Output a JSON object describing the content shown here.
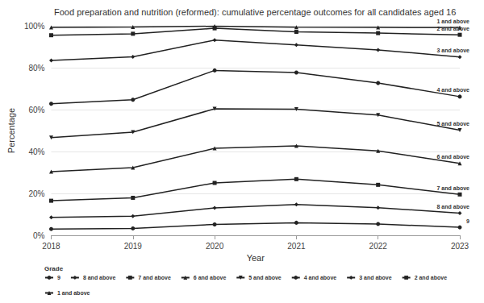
{
  "chart_data": {
    "type": "line",
    "title": "Food preparation and nutrition (reformed): cumulative percentage outcomes for all candidates aged 16",
    "xlabel": "Year",
    "ylabel": "Percentage",
    "legend_title": "Grade",
    "legend": "bottom",
    "grid": true,
    "x": [
      2018,
      2019,
      2020,
      2021,
      2022,
      2023
    ],
    "xlim": [
      2018,
      2023
    ],
    "xticks": [
      2018,
      2019,
      2020,
      2021,
      2022,
      2023
    ],
    "ylim": [
      0,
      100
    ],
    "yticks": [
      {
        "value": 0,
        "label": "0%"
      },
      {
        "value": 20,
        "label": "20%"
      },
      {
        "value": 40,
        "label": "40%"
      },
      {
        "value": 60,
        "label": "60%"
      },
      {
        "value": 80,
        "label": "80%"
      },
      {
        "value": 100,
        "label": "100%"
      }
    ],
    "series": [
      {
        "name": "9",
        "color": "#222222",
        "marker": "circle",
        "values": [
          3.0,
          3.3,
          5.2,
          6.0,
          5.4,
          3.8
        ]
      },
      {
        "name": "8 and above",
        "color": "#222222",
        "marker": "diamond",
        "values": [
          8.6,
          9.1,
          13.1,
          14.7,
          13.2,
          10.6
        ]
      },
      {
        "name": "7 and above",
        "color": "#222222",
        "marker": "square",
        "values": [
          16.5,
          17.9,
          25.0,
          26.8,
          24.1,
          19.5
        ]
      },
      {
        "name": "6 and above",
        "color": "#222222",
        "marker": "triangle",
        "values": [
          30.4,
          32.3,
          41.5,
          42.7,
          40.3,
          34.3
        ]
      },
      {
        "name": "5 and above",
        "color": "#222222",
        "marker": "triangle-down",
        "values": [
          46.6,
          49.2,
          60.4,
          60.2,
          57.4,
          50.2
        ]
      },
      {
        "name": "4 and above",
        "color": "#222222",
        "marker": "circle",
        "values": [
          62.8,
          64.7,
          78.7,
          77.7,
          72.7,
          66.2
        ]
      },
      {
        "name": "3 and above",
        "color": "#222222",
        "marker": "diamond",
        "values": [
          83.5,
          85.2,
          93.2,
          90.9,
          88.5,
          85.1
        ]
      },
      {
        "name": "2 and above",
        "color": "#222222",
        "marker": "square",
        "values": [
          95.5,
          96.2,
          98.8,
          97.1,
          96.5,
          95.7
        ]
      },
      {
        "name": "1 and above",
        "color": "#222222",
        "marker": "triangle",
        "values": [
          99.2,
          99.4,
          99.8,
          99.3,
          99.2,
          99.1
        ]
      }
    ]
  }
}
